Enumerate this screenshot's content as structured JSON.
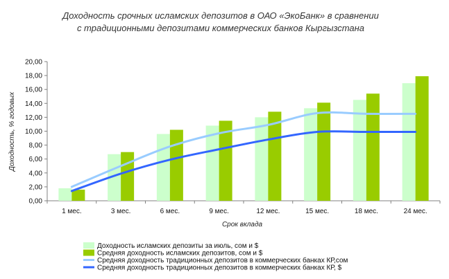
{
  "chart_data": {
    "type": "bar",
    "title": [
      "Доходность срочных исламских депозитов в ОАО «ЭкоБанк» в сравнении",
      "с традиционными депозитами коммерческих банков Кыргызстана"
    ],
    "xlabel": "Срок вклада",
    "ylabel": "Доходность, % годовых",
    "ylim": [
      0,
      20
    ],
    "yticks": [
      "0,00",
      "2,00",
      "4,00",
      "6,00",
      "8,00",
      "10,00",
      "12,00",
      "14,00",
      "16,00",
      "18,00",
      "20,00"
    ],
    "categories": [
      "1 мес.",
      "3 мес.",
      "6 мес.",
      "9 мес.",
      "12 мес.",
      "15 мес.",
      "18 мес.",
      "24 мес."
    ],
    "series": [
      {
        "name": "Доходность исламских депозиты за июль, сом и $",
        "kind": "bar",
        "color": "#ccffcc",
        "values": [
          1.8,
          6.7,
          9.6,
          10.8,
          12.0,
          13.3,
          14.5,
          16.9
        ]
      },
      {
        "name": "Средняя доходность исламских депозитов, сом и $",
        "kind": "bar",
        "color": "#99cc00",
        "values": [
          1.6,
          7.0,
          10.2,
          11.5,
          12.8,
          14.1,
          15.4,
          17.9
        ]
      },
      {
        "name": "Средняя доходность традиционных депозитов в коммерческих банках КР,сом",
        "kind": "line",
        "color": "#99ccff",
        "values": [
          2.0,
          5.0,
          7.8,
          9.7,
          10.9,
          12.6,
          12.5,
          12.5
        ]
      },
      {
        "name": "Средняя доходность традиционных депозитов в коммерческих банках КР, $",
        "kind": "line",
        "color": "#3366ff",
        "values": [
          1.4,
          3.9,
          5.9,
          7.4,
          8.8,
          9.9,
          9.9,
          9.9
        ]
      }
    ],
    "grid": false,
    "legend": "bottom"
  }
}
